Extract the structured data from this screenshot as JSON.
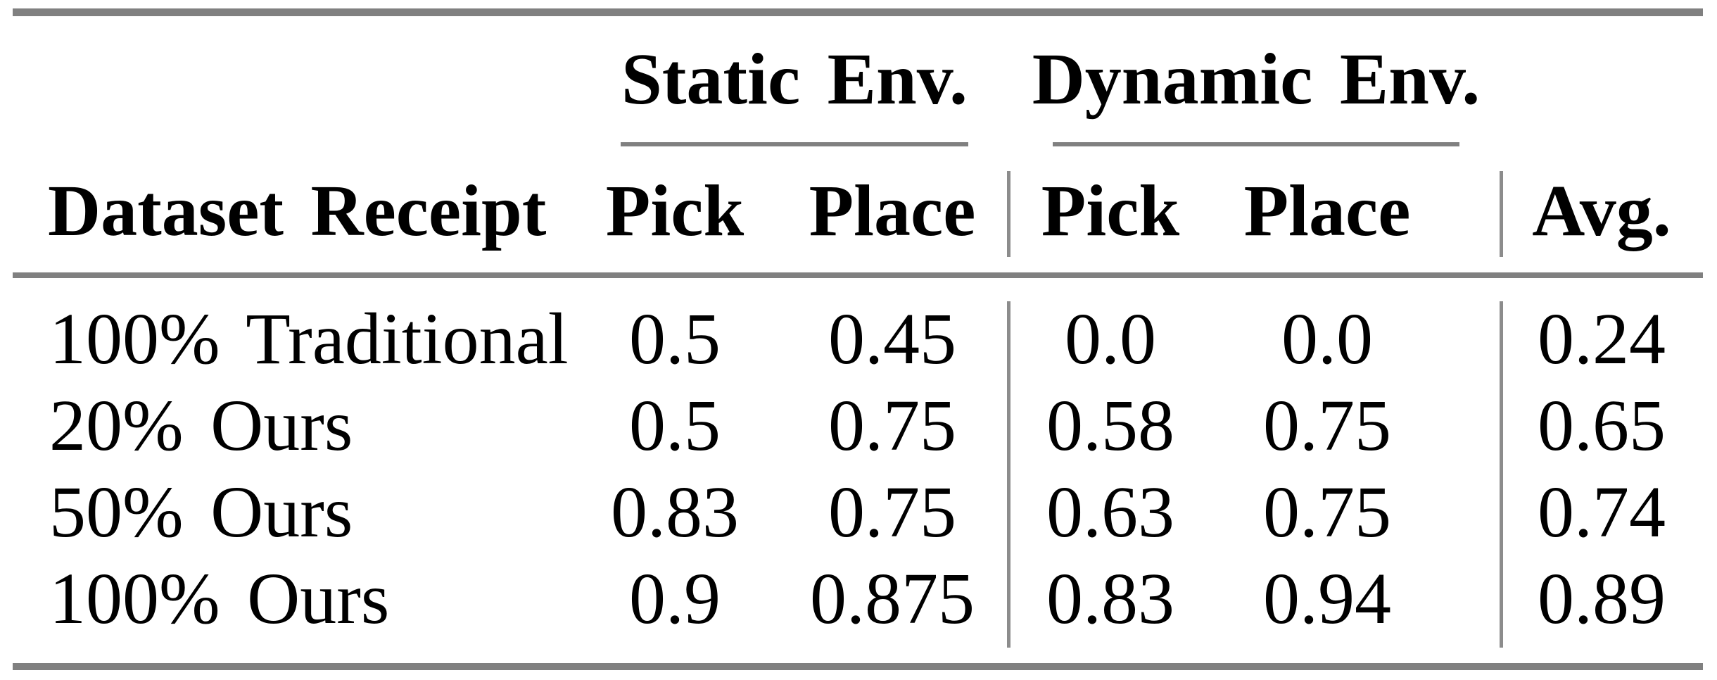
{
  "page": {
    "background": "#ffffff"
  },
  "colors": {
    "rule": "#808080",
    "separator": "#8c8c8c",
    "text": "#000000",
    "background": "#ffffff"
  },
  "table": {
    "groups": [
      {
        "label": "Static Env."
      },
      {
        "label": "Dynamic Env."
      }
    ],
    "header": {
      "row_label": "Dataset Receipt",
      "columns": [
        "Pick",
        "Place",
        "Pick",
        "Place",
        "Avg."
      ]
    },
    "rows": [
      {
        "label": "100% Traditional",
        "values": [
          "0.5",
          "0.45",
          "0.0",
          "0.0",
          "0.24"
        ]
      },
      {
        "label": "20% Ours",
        "values": [
          "0.5",
          "0.75",
          "0.58",
          "0.75",
          "0.65"
        ]
      },
      {
        "label": "50% Ours",
        "values": [
          "0.83",
          "0.75",
          "0.63",
          "0.75",
          "0.74"
        ]
      },
      {
        "label": "100% Ours",
        "values": [
          "0.9",
          "0.875",
          "0.83",
          "0.94",
          "0.89"
        ]
      }
    ]
  },
  "chart_data": {
    "type": "table",
    "columns": [
      "Dataset Receipt",
      "Static Env. Pick",
      "Static Env. Place",
      "Dynamic Env. Pick",
      "Dynamic Env. Place",
      "Avg."
    ],
    "rows": [
      [
        "100% Traditional",
        0.5,
        0.45,
        0.0,
        0.0,
        0.24
      ],
      [
        "20% Ours",
        0.5,
        0.75,
        0.58,
        0.75,
        0.65
      ],
      [
        "50% Ours",
        0.83,
        0.75,
        0.63,
        0.75,
        0.74
      ],
      [
        "100% Ours",
        0.9,
        0.875,
        0.83,
        0.94,
        0.89
      ]
    ]
  }
}
